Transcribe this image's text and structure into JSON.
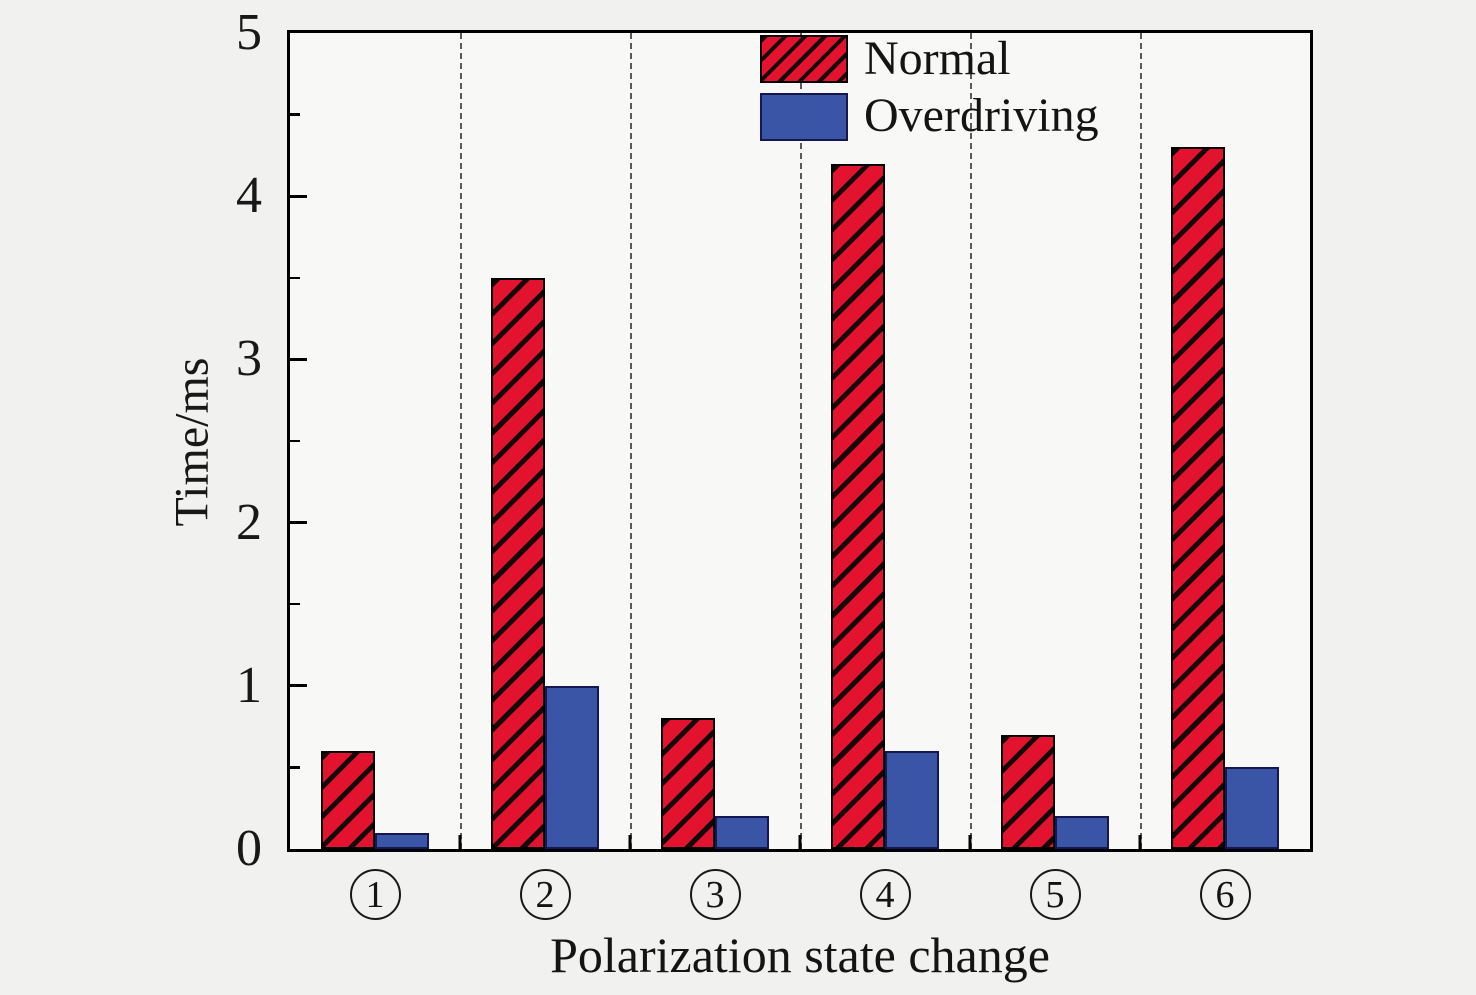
{
  "figure": {
    "background": "#f1f1ef",
    "plot_background": "#f8f8f6",
    "frame_color": "#000000"
  },
  "chart_data": {
    "type": "bar",
    "title": "",
    "xlabel": "Polarization state change",
    "ylabel": "Time/ms",
    "categories": [
      "①",
      "②",
      "③",
      "④",
      "⑤",
      "⑥"
    ],
    "series": [
      {
        "name": "Normal",
        "color": "#e3122f",
        "edge_color": "#000000",
        "hatch": "/",
        "values": [
          0.6,
          3.5,
          0.8,
          4.2,
          0.7,
          4.3
        ]
      },
      {
        "name": "Overdriving",
        "color": "#3a55a5",
        "edge_color": "#161650",
        "hatch": null,
        "values": [
          0.1,
          1.0,
          0.2,
          0.6,
          0.2,
          0.5
        ]
      }
    ],
    "ylim": [
      0,
      5
    ],
    "yticks": [
      0,
      1,
      2,
      3,
      4,
      5
    ],
    "minor_ytick_step": 0.5,
    "grid": {
      "vertical_dashed_between_categories": true,
      "color": "#5a5a5a",
      "style": "dashed"
    },
    "legend": {
      "position": "upper center",
      "frame": false
    }
  }
}
